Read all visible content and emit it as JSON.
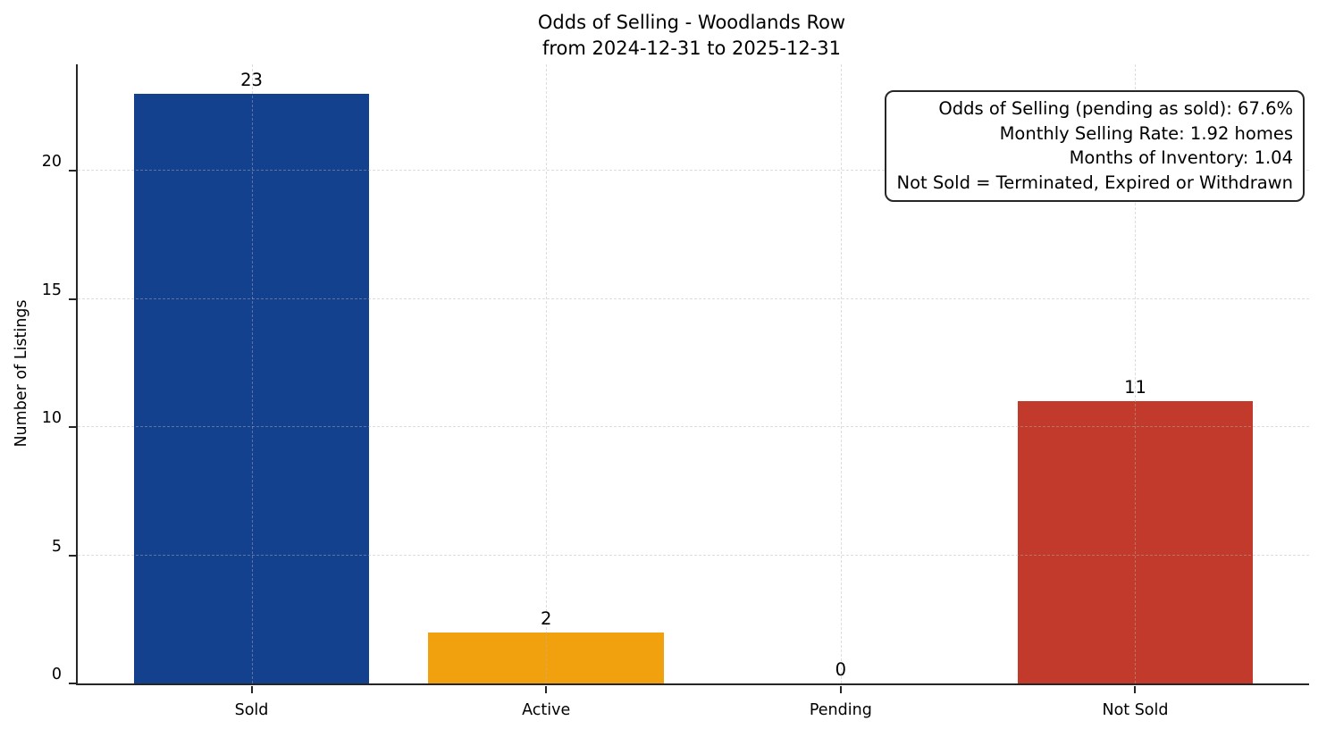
{
  "chart_data": {
    "type": "bar",
    "title_lines": [
      "Odds of Selling - Woodlands Row",
      "from 2024-12-31 to 2025-12-31"
    ],
    "categories": [
      "Sold",
      "Active",
      "Pending",
      "Not Sold"
    ],
    "values": [
      23,
      2,
      0,
      11
    ],
    "value_labels": [
      "23",
      "2",
      "0",
      "11"
    ],
    "bar_colors": [
      "#14418e",
      "#f2a10e",
      "#7f7f7f",
      "#c23a2b"
    ],
    "ylabel": "Number of Listings",
    "xlabel": "",
    "yticks": [
      0,
      5,
      10,
      15,
      20
    ],
    "ylim": [
      0,
      24.15
    ],
    "grid": {
      "visible": true,
      "style": "dashed",
      "color": "#d9d9d9",
      "horizontal": true,
      "vertical": true
    },
    "legend": "none",
    "axis_color": "#262626",
    "annotations": [
      "Odds of Selling (pending as sold): 67.6%",
      "Monthly Selling Rate: 1.92 homes",
      "Months of Inventory: 1.04",
      "Not Sold = Terminated, Expired or Withdrawn"
    ]
  }
}
